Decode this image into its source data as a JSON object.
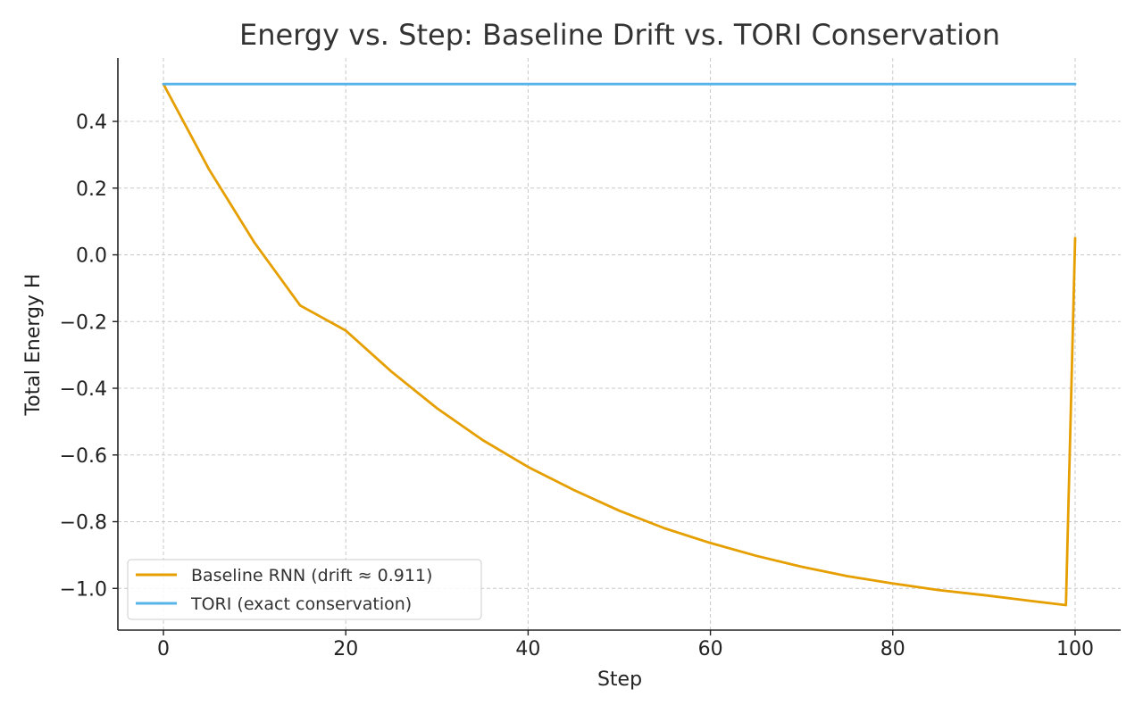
{
  "chart_data": {
    "type": "line",
    "title": "Energy vs. Step: Baseline Drift vs. TORI Conservation",
    "xlabel": "Step",
    "ylabel": "Total Energy H",
    "xlim": [
      -5,
      105
    ],
    "ylim": [
      -1.125,
      0.59
    ],
    "xticks": [
      0,
      20,
      40,
      60,
      80,
      100
    ],
    "xtick_labels": [
      "0",
      "20",
      "40",
      "60",
      "80",
      "100"
    ],
    "yticks": [
      0.4,
      0.2,
      0.0,
      -0.2,
      -0.4,
      -0.6,
      -0.8,
      -1.0
    ],
    "ytick_labels": [
      "0.4",
      "0.2",
      "0.0",
      "−0.2",
      "−0.4",
      "−0.6",
      "−0.8",
      "−1.0"
    ],
    "grid": true,
    "legend_position": "lower-left",
    "series": [
      {
        "name": "Baseline RNN (drift ≈ 0.911)",
        "color": "#E69F00",
        "x": [
          0,
          5,
          10,
          15,
          20,
          25,
          30,
          35,
          40,
          45,
          50,
          55,
          60,
          65,
          70,
          75,
          80,
          85,
          90,
          95,
          99,
          100
        ],
        "y": [
          0.512,
          0.256,
          0.036,
          -0.152,
          -0.227,
          -0.35,
          -0.46,
          -0.555,
          -0.636,
          -0.705,
          -0.767,
          -0.82,
          -0.864,
          -0.902,
          -0.935,
          -0.963,
          -0.985,
          -1.005,
          -1.02,
          -1.037,
          -1.05,
          0.05
        ]
      },
      {
        "name": "TORI (exact conservation)",
        "color": "#56B4E9",
        "x": [
          0,
          100
        ],
        "y": [
          0.512,
          0.512
        ]
      }
    ]
  }
}
